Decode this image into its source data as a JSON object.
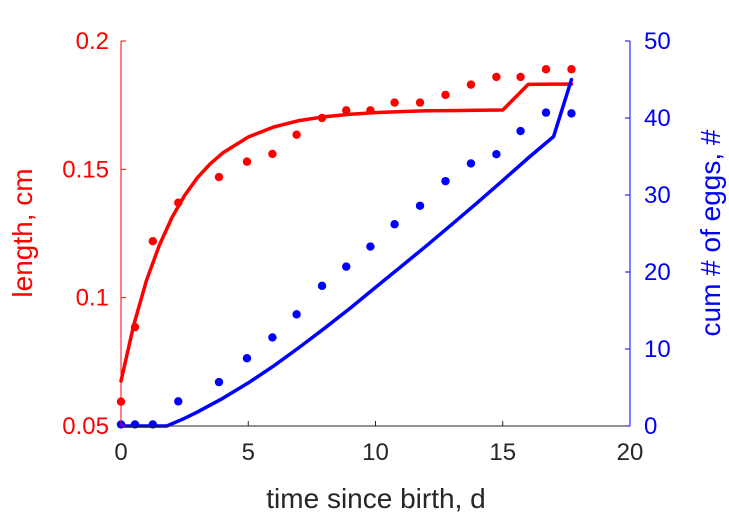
{
  "chart_data": {
    "type": "scatter",
    "xlabel": "time since birth, d",
    "ylabel_left": "length, cm",
    "ylabel_right": "cum # of eggs, #",
    "xlim": [
      0,
      20
    ],
    "ylim_left": [
      0.05,
      0.2
    ],
    "ylim_right": [
      0,
      50
    ],
    "x_ticks": [
      0,
      5,
      10,
      15,
      20
    ],
    "x_tick_labels": [
      "0",
      "5",
      "10",
      "15",
      "20"
    ],
    "y_left_ticks": [
      0.05,
      0.1,
      0.15,
      0.2
    ],
    "y_left_tick_labels": [
      "0.05",
      "0.1",
      "0.15",
      "0.2"
    ],
    "y_right_ticks": [
      0,
      10,
      20,
      30,
      40,
      50
    ],
    "y_right_tick_labels": [
      "0",
      "10",
      "20",
      "30",
      "40",
      "50"
    ],
    "colors": {
      "left": "#ff0000",
      "right": "#0000ff",
      "axis": "#262626"
    },
    "series": [
      {
        "axis": "left",
        "kind": "points",
        "color": "#ff0000",
        "x": [
          0.0,
          0.55,
          1.25,
          2.25,
          3.85,
          4.95,
          5.95,
          6.9,
          7.9,
          8.85,
          9.8,
          10.75,
          11.75,
          12.75,
          13.75,
          14.75,
          15.7,
          16.7,
          17.7
        ],
        "y": [
          0.0595,
          0.0885,
          0.122,
          0.137,
          0.147,
          0.153,
          0.156,
          0.1635,
          0.17,
          0.173,
          0.173,
          0.176,
          0.176,
          0.179,
          0.183,
          0.186,
          0.186,
          0.189,
          0.189
        ]
      },
      {
        "axis": "left",
        "kind": "line",
        "color": "#ff0000",
        "x": [
          0,
          0.5,
          1,
          1.5,
          2,
          2.5,
          3,
          3.5,
          4,
          5,
          6,
          7,
          8,
          9,
          10,
          11,
          12,
          13,
          14,
          15,
          16,
          17,
          17.7
        ],
        "y": [
          0.0675,
          0.0893,
          0.1066,
          0.1203,
          0.1312,
          0.1398,
          0.1467,
          0.1521,
          0.1564,
          0.1626,
          0.1665,
          0.169,
          0.1705,
          0.1715,
          0.1721,
          0.1725,
          0.1728,
          0.1729,
          0.173,
          0.1731,
          0.1831,
          0.1832,
          0.1832
        ]
      },
      {
        "axis": "right",
        "kind": "points",
        "color": "#0000ff",
        "x": [
          0.0,
          0.55,
          1.25,
          2.25,
          3.85,
          4.95,
          5.95,
          6.9,
          7.9,
          8.85,
          9.8,
          10.75,
          11.75,
          12.75,
          13.75,
          14.75,
          15.7,
          16.7,
          17.7
        ],
        "y": [
          0.2,
          0.2,
          0.2,
          3.2,
          5.7,
          8.8,
          11.5,
          14.5,
          18.2,
          20.7,
          23.3,
          26.2,
          28.6,
          31.8,
          34.1,
          35.3,
          38.3,
          40.7,
          40.6
        ]
      },
      {
        "axis": "right",
        "kind": "line",
        "color": "#0000ff",
        "x": [
          0,
          1,
          1.8,
          2.5,
          3,
          4,
          5,
          6,
          7,
          8,
          9,
          10,
          11,
          12,
          13,
          14,
          15,
          16,
          17,
          17.7
        ],
        "y": [
          0,
          0,
          0,
          1.0,
          1.8,
          3.6,
          5.6,
          7.8,
          10.2,
          12.7,
          15.3,
          18.0,
          20.7,
          23.4,
          26.2,
          29.0,
          31.9,
          34.8,
          37.6,
          45.0
        ]
      }
    ]
  }
}
